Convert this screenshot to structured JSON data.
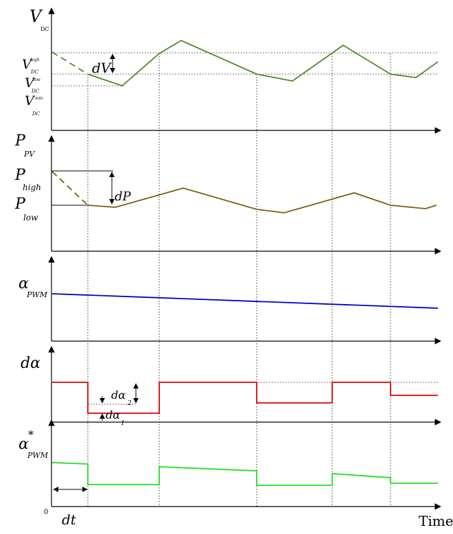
{
  "labels": {
    "vdc_v": "V",
    "vdc_sub": "DC",
    "vhigh_v": "V",
    "vhigh_sup": "high",
    "vhigh_sub": "DC",
    "vlow_v": "V",
    "vlow_sup": "low",
    "vlow_sub": "DC",
    "vmin_v": "V",
    "vmin_sup": "min",
    "vmin_sub": "DC",
    "dv": "dV",
    "ppv_p": "P",
    "ppv_sub": "PV",
    "phigh_p": "P",
    "phigh_sub": "high",
    "plow_p": "P",
    "plow_sub": "low",
    "dp": "dP",
    "apwm_a": "α",
    "apwm_sub": "PWM",
    "dalpha": "dα",
    "dalpha2": "dα",
    "dalpha2_sub": "2",
    "dalpha1": "dα",
    "dalpha1_sub": "1",
    "astar_a": "α",
    "astar_sup": "*",
    "astar_sub": "PWM",
    "origin": "0",
    "dt": "dt",
    "time": "Time"
  },
  "colors": {
    "vdc": "#4e8a2e",
    "ppv": "#7a5c10",
    "apwm": "#0000cc",
    "dalpha": "#dd0000",
    "astar": "#22dd22",
    "axis": "#000000",
    "guide": "#000000"
  }
}
